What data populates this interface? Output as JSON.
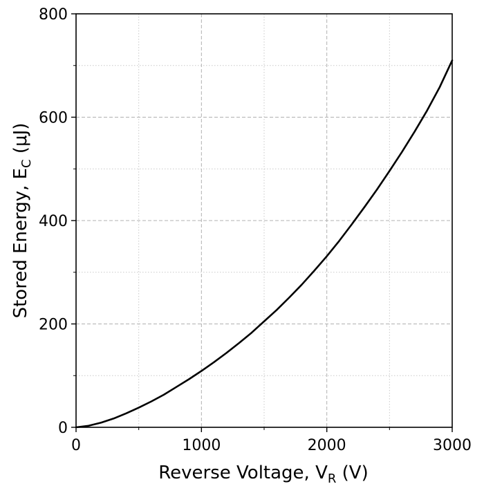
{
  "chart_data": {
    "type": "line",
    "title": "",
    "xlabel": {
      "main": "Reverse Voltage, V",
      "sub": "R",
      "tail": " (V)"
    },
    "ylabel": {
      "main": "Stored Energy, E",
      "sub": "C",
      "tail": " (μJ)"
    },
    "xlim": [
      0,
      3000
    ],
    "ylim": [
      0,
      800
    ],
    "x_ticks": [
      0,
      1000,
      2000,
      3000
    ],
    "y_ticks": [
      0,
      200,
      400,
      600,
      800
    ],
    "x_tick_labels": [
      "0",
      "1000",
      "2000",
      "3000"
    ],
    "y_tick_labels": [
      "0",
      "200",
      "400",
      "600",
      "800"
    ],
    "x_minor_ticks": [
      500,
      1500,
      2500
    ],
    "y_minor_ticks": [
      100,
      300,
      500,
      700
    ],
    "grid": {
      "major": "dashed",
      "minor": "dotted"
    },
    "series": [
      {
        "color": "#000000",
        "x": [
          0,
          100,
          200,
          300,
          400,
          500,
          600,
          700,
          800,
          900,
          1000,
          1100,
          1200,
          1300,
          1400,
          1500,
          1600,
          1700,
          1800,
          1900,
          2000,
          2100,
          2200,
          2300,
          2400,
          2500,
          2600,
          2700,
          2800,
          2900,
          3000
        ],
        "y": [
          0,
          3,
          9,
          17,
          27,
          38,
          50,
          63,
          78,
          93,
          109,
          126,
          144,
          163,
          183,
          205,
          227,
          251,
          276,
          303,
          331,
          361,
          393,
          426,
          460,
          496,
          533,
          572,
          613,
          658,
          710
        ]
      }
    ]
  }
}
